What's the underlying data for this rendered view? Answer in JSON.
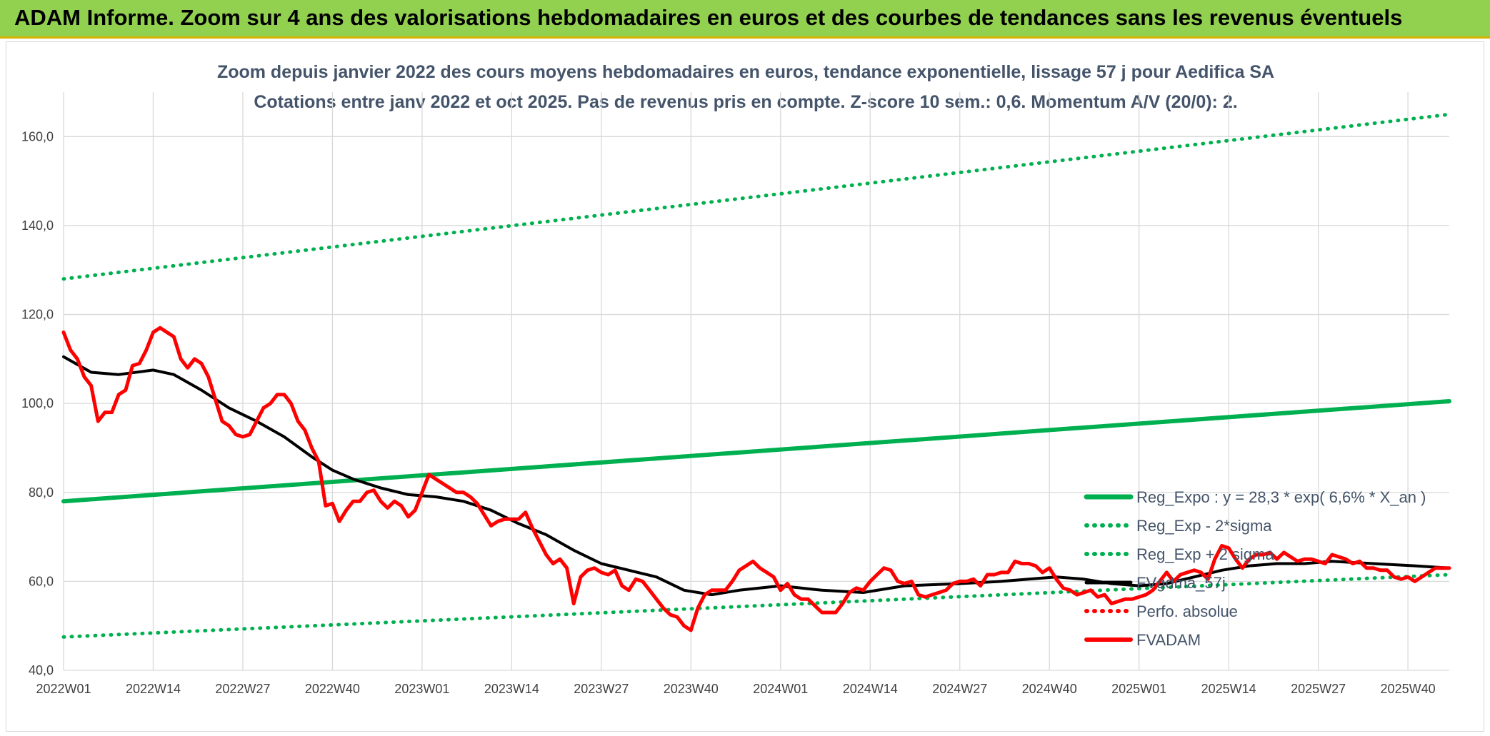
{
  "banner": {
    "title": "ADAM Informe. Zoom sur 4 ans des valorisations hebdomadaires en euros et des courbes de tendances sans les revenus éventuels"
  },
  "colors": {
    "trend": "#00b050",
    "smoothed": "#000000",
    "price": "#ff0000",
    "perfo": "#ff0000",
    "banner": "#92d050",
    "grid": "#d9d9d9"
  },
  "chart_data": {
    "type": "line",
    "title": "Zoom depuis janvier 2022 des cours moyens hebdomadaires en euros, tendance exponentielle, lissage 57 j pour Aedifica SA",
    "subtitle": "Cotations entre janv 2022 et oct 2025. Pas de revenus pris en compte. Z-score 10 sem.: 0,6. Momentum A/V (20/0): 2.",
    "xlabel": "",
    "ylabel": "",
    "ylim": [
      40,
      170
    ],
    "yticks": [
      40,
      60,
      80,
      100,
      120,
      140,
      160
    ],
    "ytick_labels": [
      "40,0",
      "60,0",
      "80,0",
      "100,0",
      "120,0",
      "140,0",
      "160,0"
    ],
    "x_range_weeks": [
      0,
      201
    ],
    "xticks": [
      {
        "week": 0,
        "label": "2022W01"
      },
      {
        "week": 13,
        "label": "2022W14"
      },
      {
        "week": 26,
        "label": "2022W27"
      },
      {
        "week": 39,
        "label": "2022W40"
      },
      {
        "week": 52,
        "label": "2023W01"
      },
      {
        "week": 65,
        "label": "2023W14"
      },
      {
        "week": 78,
        "label": "2023W27"
      },
      {
        "week": 91,
        "label": "2023W40"
      },
      {
        "week": 104,
        "label": "2024W01"
      },
      {
        "week": 117,
        "label": "2024W14"
      },
      {
        "week": 130,
        "label": "2024W27"
      },
      {
        "week": 143,
        "label": "2024W40"
      },
      {
        "week": 156,
        "label": "2025W01"
      },
      {
        "week": 169,
        "label": "2025W14"
      },
      {
        "week": 182,
        "label": "2025W27"
      },
      {
        "week": 195,
        "label": "2025W40"
      }
    ],
    "grid": true,
    "legend_position": "bottom-right",
    "series": [
      {
        "name": "Reg_Expo : y = 28,3 * exp( 6,6% *  X_an )",
        "style": "solid-thick",
        "color": "#00b050",
        "points": [
          [
            0,
            78
          ],
          [
            201,
            100.5
          ]
        ]
      },
      {
        "name": "Reg_Exp - 2*sigma",
        "style": "dotted",
        "color": "#00b050",
        "points": [
          [
            0,
            47.5
          ],
          [
            201,
            61.5
          ]
        ]
      },
      {
        "name": "Reg_Exp + 2 sigma",
        "style": "dotted",
        "color": "#00b050",
        "points": [
          [
            0,
            128
          ],
          [
            201,
            165
          ]
        ]
      },
      {
        "name": "FVgdma_57j",
        "style": "solid",
        "color": "#000000",
        "points": [
          [
            0,
            110.5
          ],
          [
            4,
            107
          ],
          [
            8,
            106.5
          ],
          [
            13,
            107.5
          ],
          [
            16,
            106.5
          ],
          [
            20,
            103
          ],
          [
            24,
            99
          ],
          [
            28,
            96
          ],
          [
            32,
            92.5
          ],
          [
            36,
            88
          ],
          [
            39,
            85
          ],
          [
            42,
            83
          ],
          [
            46,
            81
          ],
          [
            50,
            79.5
          ],
          [
            54,
            79
          ],
          [
            58,
            78
          ],
          [
            62,
            76
          ],
          [
            66,
            73
          ],
          [
            70,
            70.5
          ],
          [
            74,
            67
          ],
          [
            78,
            64
          ],
          [
            82,
            62.5
          ],
          [
            86,
            61
          ],
          [
            90,
            58
          ],
          [
            94,
            57
          ],
          [
            98,
            58
          ],
          [
            104,
            59
          ],
          [
            110,
            58
          ],
          [
            116,
            57.5
          ],
          [
            122,
            59
          ],
          [
            130,
            59.5
          ],
          [
            136,
            60
          ],
          [
            140,
            60.5
          ],
          [
            144,
            61
          ],
          [
            148,
            60.5
          ],
          [
            152,
            59.5
          ],
          [
            156,
            59
          ],
          [
            160,
            59.5
          ],
          [
            164,
            61
          ],
          [
            168,
            62.5
          ],
          [
            172,
            63.5
          ],
          [
            176,
            64
          ],
          [
            180,
            64
          ],
          [
            184,
            64.5
          ],
          [
            190,
            64
          ],
          [
            196,
            63.5
          ],
          [
            201,
            63
          ]
        ]
      },
      {
        "name": "Perfo. absolue",
        "style": "dotted",
        "color": "#ff0000",
        "points": []
      },
      {
        "name": "FVADAM",
        "style": "solid-thick",
        "color": "#ff0000",
        "points": [
          [
            0,
            116
          ],
          [
            1,
            112
          ],
          [
            2,
            110
          ],
          [
            3,
            106
          ],
          [
            4,
            104
          ],
          [
            5,
            96
          ],
          [
            6,
            98
          ],
          [
            7,
            98
          ],
          [
            8,
            102
          ],
          [
            9,
            103
          ],
          [
            10,
            108.5
          ],
          [
            11,
            109
          ],
          [
            12,
            112
          ],
          [
            13,
            116
          ],
          [
            14,
            117
          ],
          [
            15,
            116
          ],
          [
            16,
            115
          ],
          [
            17,
            110
          ],
          [
            18,
            108
          ],
          [
            19,
            110
          ],
          [
            20,
            109
          ],
          [
            21,
            106
          ],
          [
            22,
            101
          ],
          [
            23,
            96
          ],
          [
            24,
            95
          ],
          [
            25,
            93
          ],
          [
            26,
            92.5
          ],
          [
            27,
            93
          ],
          [
            28,
            96
          ],
          [
            29,
            99
          ],
          [
            30,
            100
          ],
          [
            31,
            102
          ],
          [
            32,
            102
          ],
          [
            33,
            100
          ],
          [
            34,
            96
          ],
          [
            35,
            94
          ],
          [
            36,
            90
          ],
          [
            37,
            87
          ],
          [
            38,
            77
          ],
          [
            39,
            77.5
          ],
          [
            40,
            73.5
          ],
          [
            41,
            76
          ],
          [
            42,
            78
          ],
          [
            43,
            78
          ],
          [
            44,
            80
          ],
          [
            45,
            80.5
          ],
          [
            46,
            78
          ],
          [
            47,
            76.5
          ],
          [
            48,
            78
          ],
          [
            49,
            77
          ],
          [
            50,
            74.5
          ],
          [
            51,
            76
          ],
          [
            52,
            80
          ],
          [
            53,
            84
          ],
          [
            54,
            83
          ],
          [
            55,
            82
          ],
          [
            56,
            81
          ],
          [
            57,
            80
          ],
          [
            58,
            80
          ],
          [
            59,
            79
          ],
          [
            60,
            77.5
          ],
          [
            61,
            75
          ],
          [
            62,
            72.5
          ],
          [
            63,
            73.5
          ],
          [
            64,
            74
          ],
          [
            65,
            74
          ],
          [
            66,
            74
          ],
          [
            67,
            75.5
          ],
          [
            68,
            72
          ],
          [
            69,
            69
          ],
          [
            70,
            66
          ],
          [
            71,
            64
          ],
          [
            72,
            65
          ],
          [
            73,
            63
          ],
          [
            74,
            55
          ],
          [
            75,
            61
          ],
          [
            76,
            62.5
          ],
          [
            77,
            63
          ],
          [
            78,
            62
          ],
          [
            79,
            61.5
          ],
          [
            80,
            62.5
          ],
          [
            81,
            59
          ],
          [
            82,
            58
          ],
          [
            83,
            60.5
          ],
          [
            84,
            60
          ],
          [
            85,
            58
          ],
          [
            86,
            56
          ],
          [
            87,
            54
          ],
          [
            88,
            52.5
          ],
          [
            89,
            52
          ],
          [
            90,
            50
          ],
          [
            91,
            49
          ],
          [
            92,
            54
          ],
          [
            93,
            57
          ],
          [
            94,
            58
          ],
          [
            95,
            58
          ],
          [
            96,
            58
          ],
          [
            97,
            60
          ],
          [
            98,
            62.5
          ],
          [
            99,
            63.5
          ],
          [
            100,
            64.5
          ],
          [
            101,
            63
          ],
          [
            102,
            62
          ],
          [
            103,
            61
          ],
          [
            104,
            58
          ],
          [
            105,
            59.5
          ],
          [
            106,
            57
          ],
          [
            107,
            56
          ],
          [
            108,
            56
          ],
          [
            109,
            54.5
          ],
          [
            110,
            53
          ],
          [
            111,
            53
          ],
          [
            112,
            53
          ],
          [
            113,
            55
          ],
          [
            114,
            57.5
          ],
          [
            115,
            58.5
          ],
          [
            116,
            58
          ],
          [
            117,
            60
          ],
          [
            118,
            61.5
          ],
          [
            119,
            63
          ],
          [
            120,
            62.5
          ],
          [
            121,
            60
          ],
          [
            122,
            59.5
          ],
          [
            123,
            60
          ],
          [
            124,
            57
          ],
          [
            125,
            56.5
          ],
          [
            126,
            57
          ],
          [
            127,
            57.5
          ],
          [
            128,
            58
          ],
          [
            129,
            59.5
          ],
          [
            130,
            60
          ],
          [
            131,
            60
          ],
          [
            132,
            60.5
          ],
          [
            133,
            59
          ],
          [
            134,
            61.5
          ],
          [
            135,
            61.5
          ],
          [
            136,
            62
          ],
          [
            137,
            62
          ],
          [
            138,
            64.5
          ],
          [
            139,
            64
          ],
          [
            140,
            64
          ],
          [
            141,
            63.5
          ],
          [
            142,
            62
          ],
          [
            143,
            63
          ],
          [
            144,
            60.5
          ],
          [
            145,
            58.5
          ],
          [
            146,
            58
          ],
          [
            147,
            57
          ],
          [
            148,
            57.5
          ],
          [
            149,
            58
          ],
          [
            150,
            56.5
          ],
          [
            151,
            57
          ],
          [
            152,
            55
          ],
          [
            153,
            55.5
          ],
          [
            154,
            56
          ],
          [
            155,
            56
          ],
          [
            156,
            56.5
          ],
          [
            157,
            57
          ],
          [
            158,
            58
          ],
          [
            159,
            60
          ],
          [
            160,
            62
          ],
          [
            161,
            60
          ],
          [
            162,
            61.5
          ],
          [
            163,
            62
          ],
          [
            164,
            62.5
          ],
          [
            165,
            62
          ],
          [
            166,
            60.5
          ],
          [
            167,
            65
          ],
          [
            168,
            68
          ],
          [
            169,
            67.5
          ],
          [
            170,
            65
          ],
          [
            171,
            63
          ],
          [
            172,
            65
          ],
          [
            173,
            66
          ],
          [
            174,
            66
          ],
          [
            175,
            66.5
          ],
          [
            176,
            65
          ],
          [
            177,
            66.5
          ],
          [
            178,
            65.5
          ],
          [
            179,
            64.5
          ],
          [
            180,
            65
          ],
          [
            181,
            65
          ],
          [
            182,
            64.5
          ],
          [
            183,
            64
          ],
          [
            184,
            66
          ],
          [
            185,
            65.5
          ],
          [
            186,
            65
          ],
          [
            187,
            64
          ],
          [
            188,
            64.5
          ],
          [
            189,
            63
          ],
          [
            190,
            63
          ],
          [
            191,
            62.5
          ],
          [
            192,
            62.5
          ],
          [
            193,
            61
          ],
          [
            194,
            60.5
          ],
          [
            195,
            61
          ],
          [
            196,
            60
          ],
          [
            197,
            61
          ],
          [
            198,
            62
          ],
          [
            199,
            63
          ],
          [
            200,
            63
          ],
          [
            201,
            63
          ]
        ]
      }
    ]
  }
}
